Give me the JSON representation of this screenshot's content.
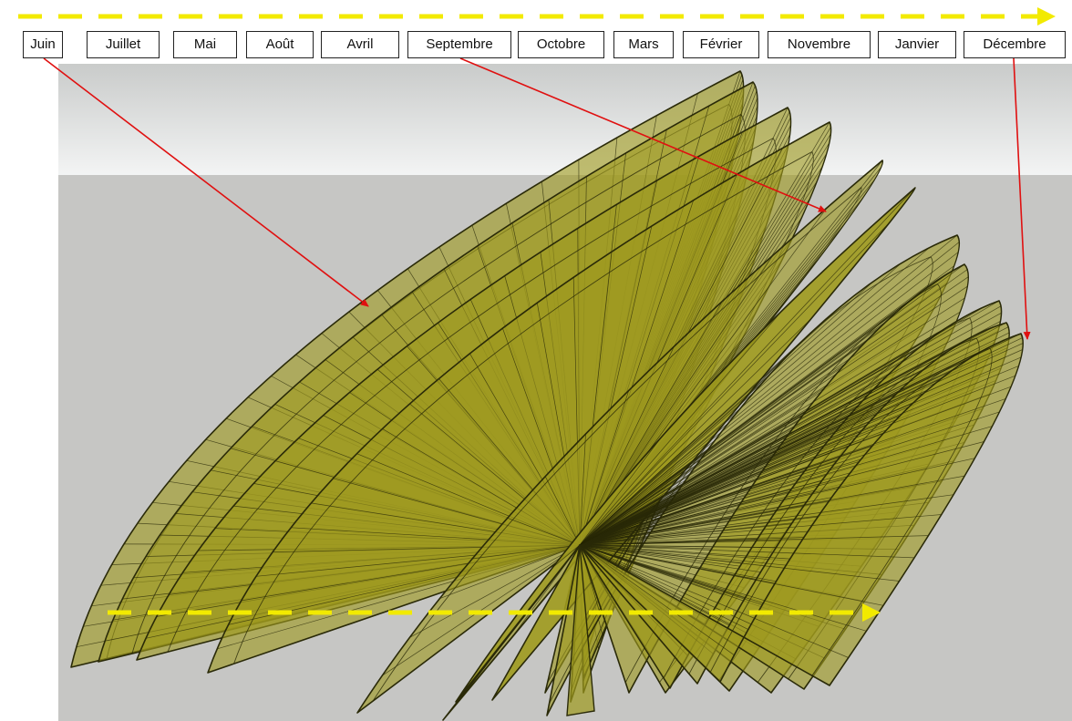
{
  "months": [
    {
      "key": "juin",
      "label": "Juin"
    },
    {
      "key": "juillet",
      "label": "Juillet"
    },
    {
      "key": "mai",
      "label": "Mai"
    },
    {
      "key": "aout",
      "label": "Août"
    },
    {
      "key": "avril",
      "label": "Avril"
    },
    {
      "key": "septembre",
      "label": "Septembre"
    },
    {
      "key": "octobre",
      "label": "Octobre"
    },
    {
      "key": "mars",
      "label": "Mars"
    },
    {
      "key": "fevrier",
      "label": "Février"
    },
    {
      "key": "novembre",
      "label": "Novembre"
    },
    {
      "key": "janvier",
      "label": "Janvier"
    },
    {
      "key": "decembre",
      "label": "Décembre"
    }
  ],
  "colors": {
    "sky_top": "#c9cbca",
    "sky_bottom": "#f2f3f3",
    "ground": "#c6c6c4",
    "surface_fill": "#9e9a1e",
    "surface_stroke": "#2a2a08",
    "annotation_arrow": "#e01010",
    "direction_arrow": "#f2ea00"
  }
}
